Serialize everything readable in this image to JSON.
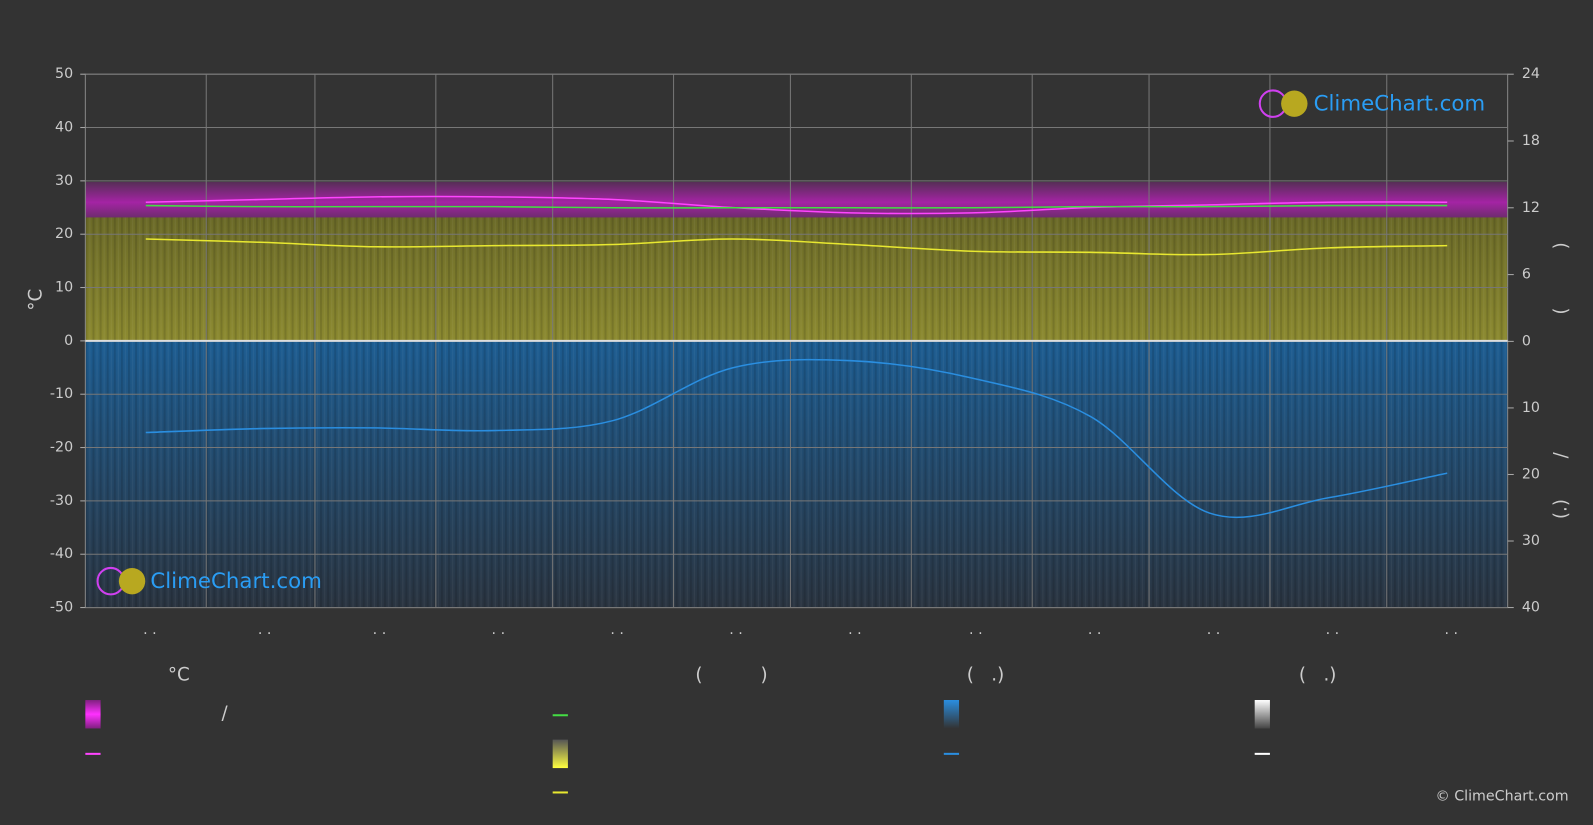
{
  "chart_data": {
    "type": "line",
    "categories": [
      ". .",
      ". .",
      ". .",
      ". .",
      ". .",
      ". .",
      ". .",
      ". .",
      ". .",
      ". .",
      ". .",
      ". ."
    ],
    "y_label": "°C",
    "y2_label": "(          )",
    "y3_label": "(.)       /",
    "ylim": [
      -50,
      50
    ],
    "yticks": [
      -50,
      -40,
      -30,
      -20,
      -10,
      0,
      10,
      20,
      30,
      40,
      50
    ],
    "y2lim": [
      0,
      24
    ],
    "y2ticks": [
      0,
      6,
      12,
      18,
      24
    ],
    "y3lim": [
      40,
      0
    ],
    "y3ticks": [
      10,
      20,
      30,
      40
    ],
    "grid": true,
    "series": [
      {
        "color": "#ff44ff",
        "values": [
          26,
          26.5,
          27,
          27,
          26.5,
          25,
          24,
          24,
          25,
          25.5,
          26,
          26
        ]
      },
      {
        "color": "#44dd44",
        "axis": "y2",
        "values": [
          12.2,
          12.1,
          12.1,
          12.1,
          12.0,
          12.0,
          12.0,
          12.0,
          12.1,
          12.1,
          12.2,
          12.2
        ]
      },
      {
        "color": "#e8e830",
        "axis": "y2",
        "values": [
          9.2,
          8.9,
          8.5,
          8.6,
          8.7,
          9.2,
          8.7,
          8.1,
          8.0,
          7.8,
          8.4,
          8.6
        ]
      },
      {
        "color": "#2a8ee0",
        "axis": "y3",
        "values": [
          13.7,
          13.1,
          13,
          13.4,
          11.9,
          4.0,
          2.9,
          5.5,
          11.3,
          25.8,
          23.5,
          19.8
        ]
      }
    ],
    "legend_headers": [
      "°C",
      "(          )",
      "(   .)",
      "(   .)"
    ],
    "legend_text": "/",
    "logo_text": "ClimeChart.com",
    "copyright": "© ClimeChart.com"
  }
}
